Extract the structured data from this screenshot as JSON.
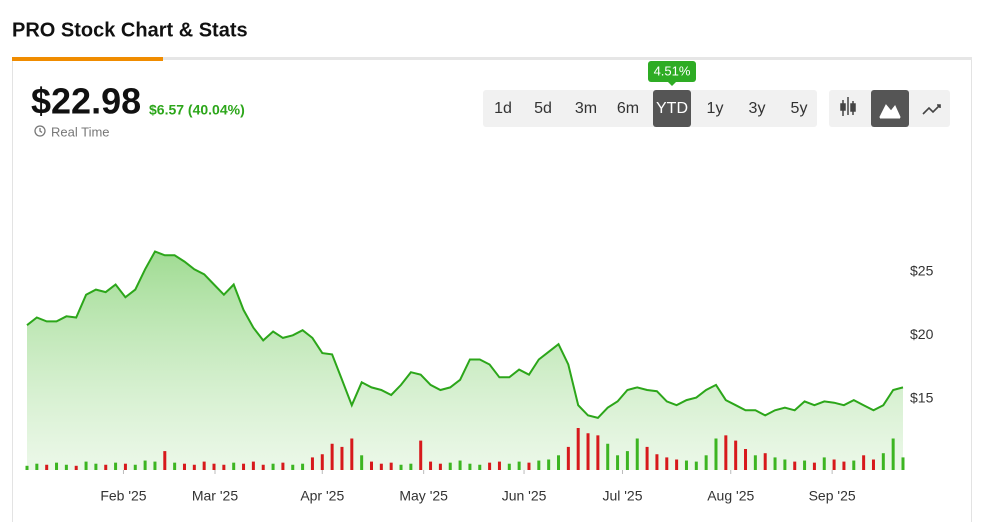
{
  "page": {
    "title": "PRO Stock Chart & Stats",
    "price": "$22.98",
    "change": "$6.57 (40.04%)",
    "real_time": "Real Time",
    "ranges": [
      "1d",
      "5d",
      "3m",
      "6m",
      "YTD",
      "1y",
      "3y",
      "5y"
    ],
    "active_range": 4,
    "range_badge": "4.51%"
  },
  "chart_data": {
    "type": "area",
    "series": [
      {
        "color": "#2ca61a",
        "values": [
          20.8,
          21.4,
          21.1,
          21.1,
          21.5,
          21.4,
          23.2,
          23.6,
          23.4,
          24.0,
          23.0,
          23.6,
          25.2,
          26.6,
          26.3,
          26.3,
          25.8,
          25.2,
          24.8,
          24.0,
          23.2,
          24.0,
          22.0,
          20.6,
          19.6,
          20.3,
          19.8,
          20.0,
          20.4,
          19.8,
          18.6,
          18.5,
          16.5,
          14.5,
          16.3,
          15.9,
          15.7,
          15.3,
          16.1,
          17.1,
          16.9,
          16.1,
          15.7,
          15.9,
          16.5,
          18.1,
          18.1,
          17.7,
          16.7,
          16.7,
          17.3,
          16.9,
          18.1,
          18.7,
          19.3,
          17.7,
          14.5,
          13.7,
          13.5,
          14.3,
          14.8,
          15.7,
          15.9,
          15.7,
          15.6,
          14.8,
          14.5,
          14.9,
          15.1,
          15.7,
          16.1,
          14.9,
          14.5,
          14.1,
          14.1,
          13.7,
          14.1,
          14.3,
          14.1,
          14.8,
          14.5,
          14.8,
          14.7,
          14.5,
          14.9,
          14.5,
          14.1,
          14.5,
          15.7,
          15.9
        ]
      }
    ],
    "volume": {
      "up_color": "#3cb521",
      "down_color": "#d7191c",
      "values": [
        4,
        6,
        5,
        7,
        5,
        4,
        8,
        6,
        5,
        7,
        6,
        5,
        9,
        8,
        18,
        7,
        6,
        5,
        8,
        6,
        5,
        7,
        6,
        8,
        5,
        6,
        7,
        5,
        6,
        12,
        15,
        25,
        22,
        30,
        14,
        8,
        6,
        7,
        5,
        6,
        28,
        8,
        6,
        7,
        9,
        6,
        5,
        7,
        8,
        6,
        8,
        7,
        9,
        10,
        14,
        22,
        40,
        35,
        33,
        25,
        14,
        18,
        30,
        22,
        15,
        12,
        10,
        9,
        8,
        14,
        30,
        33,
        28,
        20,
        14,
        16,
        12,
        10,
        8,
        9,
        7,
        12,
        10,
        8,
        9,
        14,
        10,
        16,
        30,
        12
      ]
    },
    "xlim": [
      0,
      89
    ],
    "xticks": [
      {
        "value": 9.8,
        "label": "Feb '25"
      },
      {
        "value": 19.1,
        "label": "Mar '25"
      },
      {
        "value": 30.0,
        "label": "Apr '25"
      },
      {
        "value": 40.3,
        "label": "May '25"
      },
      {
        "value": 50.5,
        "label": "Jun '25"
      },
      {
        "value": 60.5,
        "label": "Jul '25"
      },
      {
        "value": 71.5,
        "label": "Aug '25"
      },
      {
        "value": 81.8,
        "label": "Sep '25"
      }
    ],
    "ylim": [
      9.4,
      33.8
    ],
    "yticks": [
      {
        "value": 15,
        "label": "$15"
      },
      {
        "value": 20,
        "label": "$20"
      },
      {
        "value": 25,
        "label": "$25"
      }
    ]
  }
}
